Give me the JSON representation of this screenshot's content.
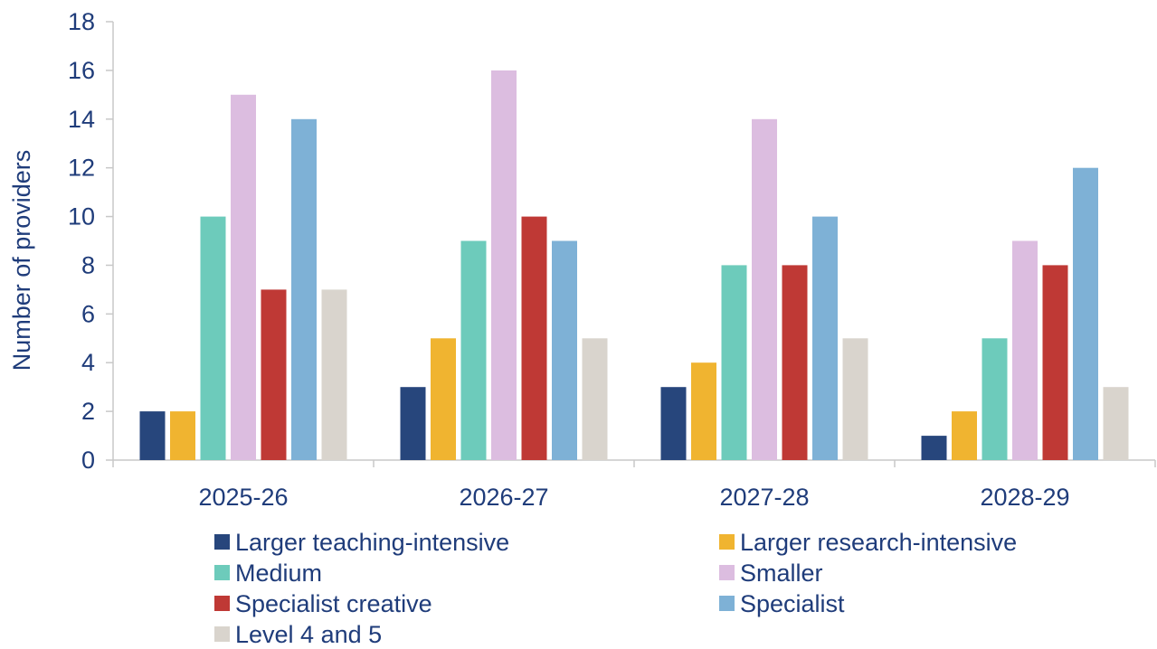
{
  "chart_data": {
    "type": "bar",
    "title": "",
    "xlabel": "",
    "ylabel": "Number of providers",
    "ylim": [
      0,
      18
    ],
    "yticks": [
      0,
      2,
      4,
      6,
      8,
      10,
      12,
      14,
      16,
      18
    ],
    "categories": [
      "2025-26",
      "2026-27",
      "2027-28",
      "2028-29"
    ],
    "grid": false,
    "legend_position": "bottom",
    "series": [
      {
        "name": "Larger teaching-intensive",
        "color": "#27467c",
        "values": [
          2,
          3,
          3,
          1
        ]
      },
      {
        "name": "Larger research-intensive",
        "color": "#f0b430",
        "values": [
          2,
          5,
          4,
          2
        ]
      },
      {
        "name": "Medium",
        "color": "#6dcbbb",
        "values": [
          10,
          9,
          8,
          5
        ]
      },
      {
        "name": "Smaller",
        "color": "#dcbde0",
        "values": [
          15,
          16,
          14,
          9
        ]
      },
      {
        "name": "Specialist creative",
        "color": "#bf3935",
        "values": [
          7,
          10,
          8,
          8
        ]
      },
      {
        "name": "Specialist",
        "color": "#7eb1d6",
        "values": [
          14,
          9,
          10,
          12
        ]
      },
      {
        "name": "Level 4 and 5",
        "color": "#d9d4cd",
        "values": [
          7,
          5,
          5,
          3
        ]
      }
    ]
  }
}
